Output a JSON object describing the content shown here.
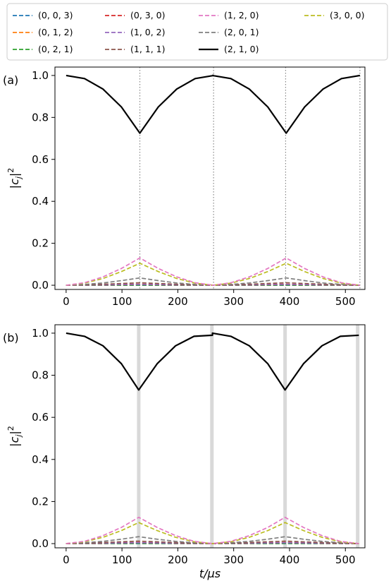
{
  "colors": {
    "(0, 0, 3)": "#1f77b4",
    "(0, 1, 2)": "#ff7f0e",
    "(0, 2, 1)": "#2ca02c",
    "(0, 3, 0)": "#d62728",
    "(1, 0, 2)": "#9467bd",
    "(1, 1, 1)": "#8c564b",
    "(1, 2, 0)": "#e377c2",
    "(2, 0, 1)": "#7f7f7f",
    "(2, 1, 0)": "#000000",
    "(3, 0, 0)": "#bcbd22",
    "marker_a": "#888888",
    "marker_b": "#d9d9d9"
  },
  "legend": {
    "placement": "top",
    "columns": 4,
    "entries": [
      {
        "label": "(0, 0, 3)",
        "style": "dashed"
      },
      {
        "label": "(0, 1, 2)",
        "style": "dashed"
      },
      {
        "label": "(0, 2, 1)",
        "style": "dashed"
      },
      {
        "label": "(0, 3, 0)",
        "style": "dashed"
      },
      {
        "label": "(1, 0, 2)",
        "style": "dashed"
      },
      {
        "label": "(1, 1, 1)",
        "style": "dashed"
      },
      {
        "label": "(1, 2, 0)",
        "style": "dashed"
      },
      {
        "label": "(2, 0, 1)",
        "style": "dashed"
      },
      {
        "label": "(2, 1, 0)",
        "style": "solid"
      },
      {
        "label": "(3, 0, 0)",
        "style": "dashed"
      }
    ]
  },
  "chart_data": [
    {
      "type": "line",
      "panel_label": "(a)",
      "xlabel": "",
      "ylabel": "|c_j|^2",
      "xlim": [
        -20,
        535
      ],
      "ylim": [
        -0.02,
        1.04
      ],
      "xticks": [
        0,
        100,
        200,
        300,
        400,
        500
      ],
      "yticks": [
        0.0,
        0.2,
        0.4,
        0.6,
        0.8,
        1.0
      ],
      "period": 262,
      "markers": {
        "positions": [
          132,
          264,
          393,
          526
        ],
        "style": "dotted"
      },
      "series": [
        {
          "name": "(2, 1, 0)",
          "x": [
            0,
            33,
            66,
            99,
            132,
            165,
            198,
            231,
            264
          ],
          "values": [
            1.0,
            0.985,
            0.935,
            0.85,
            0.725,
            0.85,
            0.935,
            0.985,
            1.0
          ]
        },
        {
          "name": "(1, 2, 0)",
          "x": [
            0,
            33,
            66,
            99,
            132,
            165,
            198,
            231,
            264
          ],
          "values": [
            0.0,
            0.012,
            0.04,
            0.08,
            0.13,
            0.08,
            0.04,
            0.012,
            0.0
          ]
        },
        {
          "name": "(3, 0, 0)",
          "x": [
            0,
            33,
            66,
            99,
            132,
            165,
            198,
            231,
            264
          ],
          "values": [
            0.0,
            0.01,
            0.032,
            0.065,
            0.105,
            0.065,
            0.032,
            0.01,
            0.0
          ]
        },
        {
          "name": "(2, 0, 1)",
          "x": [
            0,
            33,
            66,
            99,
            132,
            165,
            198,
            231,
            264
          ],
          "values": [
            0.0,
            0.004,
            0.011,
            0.022,
            0.035,
            0.022,
            0.011,
            0.004,
            0.0
          ]
        },
        {
          "name": "(1, 1, 1)",
          "x": [
            0,
            66,
            132,
            198,
            264
          ],
          "values": [
            0.0,
            0.005,
            0.012,
            0.005,
            0.0
          ]
        },
        {
          "name": "(1, 0, 2)",
          "x": [
            0,
            66,
            132,
            198,
            264
          ],
          "values": [
            0.0,
            0.002,
            0.004,
            0.002,
            0.0
          ]
        },
        {
          "name": "(0, 3, 0)",
          "x": [
            0,
            66,
            132,
            198,
            264
          ],
          "values": [
            0.0,
            0.002,
            0.005,
            0.002,
            0.0
          ]
        },
        {
          "name": "(0, 2, 1)",
          "x": [
            0,
            132,
            264
          ],
          "values": [
            0.0,
            0.001,
            0.0
          ]
        },
        {
          "name": "(0, 1, 2)",
          "x": [
            0,
            132,
            264
          ],
          "values": [
            0.0,
            0.001,
            0.0
          ]
        },
        {
          "name": "(0, 0, 3)",
          "x": [
            0,
            132,
            264
          ],
          "values": [
            0.0,
            0.0,
            0.0
          ]
        }
      ]
    },
    {
      "type": "line",
      "panel_label": "(b)",
      "xlabel": "t/μs",
      "ylabel": "|c_j|^2",
      "xlim": [
        -20,
        535
      ],
      "ylim": [
        -0.02,
        1.04
      ],
      "xticks": [
        0,
        100,
        200,
        300,
        400,
        500
      ],
      "yticks": [
        0.0,
        0.2,
        0.4,
        0.6,
        0.8,
        1.0
      ],
      "period": 262,
      "markers": {
        "positions": [
          130,
          261,
          392,
          522
        ],
        "style": "band"
      },
      "series": [
        {
          "name": "(2, 1, 0)",
          "x": [
            0,
            33,
            66,
            99,
            130,
            163,
            196,
            229,
            262
          ],
          "values": [
            1.0,
            0.985,
            0.94,
            0.855,
            0.73,
            0.855,
            0.94,
            0.985,
            0.99
          ]
        },
        {
          "name": "(1, 2, 0)",
          "x": [
            0,
            33,
            66,
            99,
            130,
            163,
            196,
            229,
            262
          ],
          "values": [
            0.0,
            0.011,
            0.038,
            0.077,
            0.125,
            0.077,
            0.038,
            0.011,
            0.0
          ]
        },
        {
          "name": "(3, 0, 0)",
          "x": [
            0,
            33,
            66,
            99,
            130,
            163,
            196,
            229,
            262
          ],
          "values": [
            0.0,
            0.009,
            0.03,
            0.062,
            0.1,
            0.062,
            0.03,
            0.009,
            0.0
          ]
        },
        {
          "name": "(2, 0, 1)",
          "x": [
            0,
            33,
            66,
            99,
            130,
            163,
            196,
            229,
            262
          ],
          "values": [
            0.0,
            0.004,
            0.011,
            0.021,
            0.033,
            0.021,
            0.011,
            0.004,
            0.0
          ]
        },
        {
          "name": "(1, 1, 1)",
          "x": [
            0,
            65,
            130,
            196,
            262
          ],
          "values": [
            0.0,
            0.005,
            0.012,
            0.005,
            0.0
          ]
        },
        {
          "name": "(1, 0, 2)",
          "x": [
            0,
            65,
            130,
            196,
            262
          ],
          "values": [
            0.0,
            0.002,
            0.004,
            0.002,
            0.0
          ]
        },
        {
          "name": "(0, 3, 0)",
          "x": [
            0,
            65,
            130,
            196,
            262
          ],
          "values": [
            0.0,
            0.002,
            0.005,
            0.002,
            0.0
          ]
        },
        {
          "name": "(0, 2, 1)",
          "x": [
            0,
            130,
            262
          ],
          "values": [
            0.0,
            0.001,
            0.0
          ]
        },
        {
          "name": "(0, 1, 2)",
          "x": [
            0,
            130,
            262
          ],
          "values": [
            0.0,
            0.001,
            0.0
          ]
        },
        {
          "name": "(0, 0, 3)",
          "x": [
            0,
            130,
            262
          ],
          "values": [
            0.0,
            0.0,
            0.0
          ]
        }
      ]
    }
  ]
}
